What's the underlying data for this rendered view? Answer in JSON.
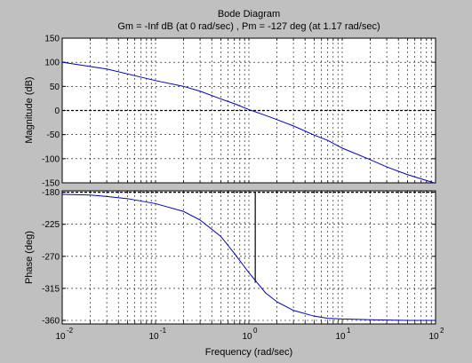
{
  "chart_data": {
    "type": "line",
    "title": "Bode Diagram",
    "subtitle": "Gm = -Inf dB (at 0 rad/sec) ,  Pm = -127 deg (at 1.17 rad/sec)",
    "xlabel": "Frequency  (rad/sec)",
    "xscale": "log",
    "xlim": [
      0.01,
      100
    ],
    "x_ticks": [
      0.01,
      0.1,
      1,
      10,
      100
    ],
    "x_tick_labels": [
      {
        "base": "10",
        "exp": "-2"
      },
      {
        "base": "10",
        "exp": "-1"
      },
      {
        "base": "10",
        "exp": "0"
      },
      {
        "base": "10",
        "exp": "1"
      },
      {
        "base": "10",
        "exp": "2"
      }
    ],
    "grid": true,
    "line_color": "#0000c0",
    "background_color": "#c0c0c0",
    "plot_bg_color": "#ffffff",
    "magnitude": {
      "ylabel": "Magnitude (dB)",
      "ylim": [
        -150,
        150
      ],
      "y_ticks": [
        150,
        100,
        50,
        0,
        -50,
        -100,
        -150
      ],
      "y_tick_labels": [
        "150",
        "100",
        "50",
        "0",
        "-50",
        "-100",
        "-150"
      ],
      "reference_line": 0,
      "x": [
        0.01,
        0.03,
        0.1,
        0.2,
        0.3,
        0.5,
        0.7,
        1,
        1.5,
        2,
        3,
        5,
        7,
        10,
        20,
        30,
        50,
        100
      ],
      "values": [
        100,
        86,
        62,
        50,
        40,
        24,
        14,
        2,
        -10,
        -19,
        -32,
        -51,
        -62,
        -78,
        -102,
        -117,
        -133,
        -151
      ]
    },
    "phase": {
      "ylabel": "Phase (deg)",
      "ylim": [
        -365,
        -178
      ],
      "y_ticks": [
        -180,
        -225,
        -270,
        -315,
        -360
      ],
      "y_tick_labels": [
        "-180",
        "-225",
        "-270",
        "-315",
        "-360"
      ],
      "reference_line": -180,
      "pm_marker": {
        "frequency": 1.17,
        "from": -180,
        "to": -307
      },
      "x": [
        0.01,
        0.02,
        0.03,
        0.05,
        0.1,
        0.2,
        0.3,
        0.5,
        0.7,
        1,
        1.5,
        2,
        3,
        5,
        7,
        10,
        20,
        50,
        100
      ],
      "values": [
        -183,
        -184,
        -186,
        -189,
        -196,
        -207,
        -219,
        -242,
        -266,
        -293,
        -321,
        -334,
        -346,
        -354,
        -357,
        -358,
        -359,
        -360,
        -360
      ]
    }
  }
}
